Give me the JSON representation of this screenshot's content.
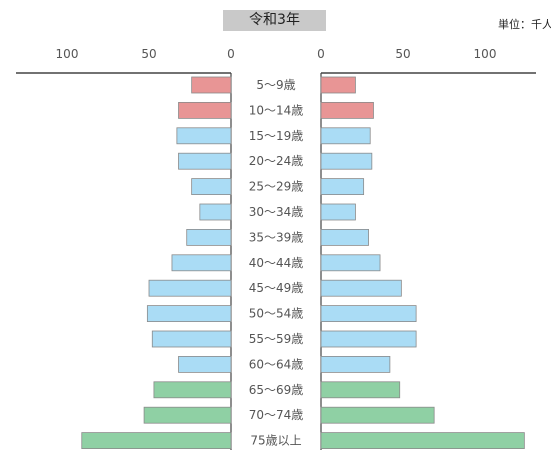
{
  "title": "令和3年",
  "unit_label": "単位：千人",
  "chart_data": {
    "type": "bar",
    "orientation": "horizontal-population-pyramid",
    "title": "令和3年",
    "unit": "単位：千人",
    "categories": [
      "5～9歳",
      "10～14歳",
      "15～19歳",
      "20～24歳",
      "25～29歳",
      "30～34歳",
      "35～39歳",
      "40～44歳",
      "45～49歳",
      "50～54歳",
      "55～59歳",
      "60～64歳",
      "65～69歳",
      "70～74歳",
      "75歳以上"
    ],
    "left_ticks": [
      100,
      50,
      0
    ],
    "right_ticks": [
      0,
      50,
      100
    ],
    "xlim": [
      0,
      125
    ],
    "grid": false,
    "series": [
      {
        "side": "left",
        "values": [
          24,
          32,
          33,
          32,
          24,
          19,
          27,
          36,
          50,
          51,
          48,
          32,
          47,
          53,
          91
        ]
      },
      {
        "side": "right",
        "values": [
          21,
          32,
          30,
          31,
          26,
          21,
          29,
          36,
          49,
          58,
          58,
          42,
          48,
          69,
          124
        ]
      }
    ],
    "colors": {
      "children": "#e89595",
      "working": "#aadcf5",
      "elderly": "#8fd0a4",
      "stroke": "#8a8a8a"
    },
    "color_groups": [
      "children",
      "children",
      "working",
      "working",
      "working",
      "working",
      "working",
      "working",
      "working",
      "working",
      "working",
      "working",
      "elderly",
      "elderly",
      "elderly"
    ]
  }
}
